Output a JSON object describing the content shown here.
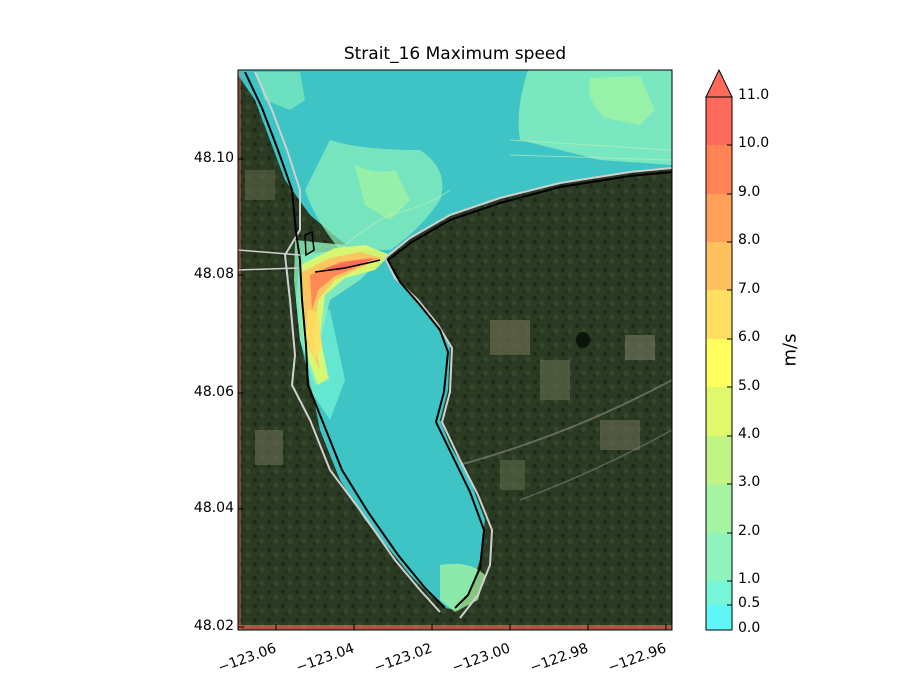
{
  "figure": {
    "title": "Strait_16 Maximum speed",
    "y_ticks": [
      "48.10",
      "48.08",
      "48.06",
      "48.04",
      "48.02"
    ],
    "x_ticks": [
      "−123.06",
      "−123.04",
      "−123.02",
      "−123.00",
      "−122.98",
      "−122.96"
    ],
    "colorbar": {
      "label": "m/s",
      "ticks": [
        "11.0",
        "10.0",
        "9.0",
        "8.0",
        "7.0",
        "6.0",
        "5.0",
        "4.0",
        "3.0",
        "2.0",
        "1.0",
        "0.5",
        "0.0"
      ],
      "levels": [
        0.0,
        0.5,
        1.0,
        2.0,
        3.0,
        4.0,
        5.0,
        6.0,
        7.0,
        8.0,
        9.0,
        10.0,
        11.0
      ],
      "colors": [
        "#5ff7f7",
        "#76f5d7",
        "#8ef3bd",
        "#a5f5a0",
        "#c1f385",
        "#e0f86c",
        "#ffff5e",
        "#ffdf62",
        "#ffc05e",
        "#ff9f58",
        "#ff8355",
        "#ff6b5b"
      ],
      "extend": "max"
    },
    "map": {
      "lat_range": [
        48.019,
        48.115
      ],
      "lon_range": [
        -123.062,
        -122.951
      ],
      "water_color": "#3ec4c4",
      "land_color": "#2c3a24",
      "coastline_color": "#000000",
      "outline_color": "#d0d0d0"
    }
  }
}
